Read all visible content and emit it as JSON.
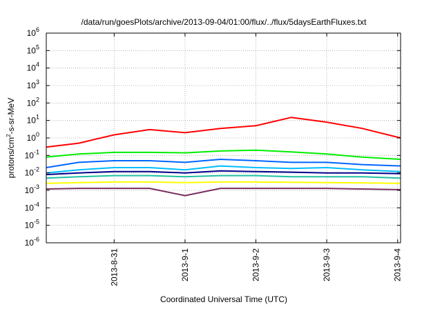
{
  "chart_data": {
    "type": "line",
    "title": "/data/run/goesPlots/archive/2013-09-04/01:00/flux/../flux/5daysEarthFluxes.txt",
    "xlabel": "Coordinated Universal Time (UTC)",
    "ylabel_parts": [
      "protons/cm",
      "2",
      "-s-sr-MeV"
    ],
    "y_scale": "log",
    "ylim": [
      1e-06,
      1000000.0
    ],
    "xlim": [
      "2013-08-30T01:00",
      "2013-09-04T01:00"
    ],
    "grid": true,
    "x_ticks": [
      {
        "date": "2013-08-31",
        "label": "2013-8-31"
      },
      {
        "date": "2013-09-01",
        "label": "2013-9-1"
      },
      {
        "date": "2013-09-02",
        "label": "2013-9-2"
      },
      {
        "date": "2013-09-03",
        "label": "2013-9-3"
      },
      {
        "date": "2013-09-04",
        "label": "2013-9-4"
      }
    ],
    "y_ticks": [
      {
        "exp": "-6",
        "value": 1e-06
      },
      {
        "exp": "-5",
        "value": 1e-05
      },
      {
        "exp": "-4",
        "value": 0.0001
      },
      {
        "exp": "-3",
        "value": 0.001
      },
      {
        "exp": "-2",
        "value": 0.01
      },
      {
        "exp": "-1",
        "value": 0.1
      },
      {
        "exp": "0",
        "value": 1
      },
      {
        "exp": "1",
        "value": 10
      },
      {
        "exp": "2",
        "value": 100
      },
      {
        "exp": "3",
        "value": 1000
      },
      {
        "exp": "4",
        "value": 10000
      },
      {
        "exp": "5",
        "value": 100000
      },
      {
        "exp": "6",
        "value": 1000000
      }
    ],
    "y_tick_base": "10",
    "series": [
      {
        "color": "#ff0000",
        "x": [
          "2013-08-30T01:00",
          "2013-08-30T12:00",
          "2013-08-31T00:00",
          "2013-08-31T12:00",
          "2013-09-01T00:00",
          "2013-09-01T12:00",
          "2013-09-02T00:00",
          "2013-09-02T12:00",
          "2013-09-03T00:00",
          "2013-09-03T12:00",
          "2013-09-04T01:00"
        ],
        "values": [
          0.3,
          0.5,
          1.5,
          3.0,
          2.0,
          3.5,
          5.0,
          15.0,
          8.0,
          3.5,
          1.0
        ]
      },
      {
        "color": "#00ee00",
        "x": [
          "2013-08-30T01:00",
          "2013-08-30T12:00",
          "2013-08-31T00:00",
          "2013-08-31T12:00",
          "2013-09-01T00:00",
          "2013-09-01T12:00",
          "2013-09-02T00:00",
          "2013-09-02T12:00",
          "2013-09-03T00:00",
          "2013-09-03T12:00",
          "2013-09-04T01:00"
        ],
        "values": [
          0.08,
          0.12,
          0.15,
          0.15,
          0.14,
          0.18,
          0.2,
          0.16,
          0.12,
          0.08,
          0.06
        ]
      },
      {
        "color": "#0066ff",
        "x": [
          "2013-08-30T01:00",
          "2013-08-30T12:00",
          "2013-08-31T00:00",
          "2013-08-31T12:00",
          "2013-09-01T00:00",
          "2013-09-01T12:00",
          "2013-09-02T00:00",
          "2013-09-02T12:00",
          "2013-09-03T00:00",
          "2013-09-03T12:00",
          "2013-09-04T01:00"
        ],
        "values": [
          0.02,
          0.04,
          0.05,
          0.05,
          0.04,
          0.06,
          0.05,
          0.04,
          0.04,
          0.03,
          0.025
        ]
      },
      {
        "color": "#00bbff",
        "x": [
          "2013-08-30T01:00",
          "2013-08-30T12:00",
          "2013-08-31T00:00",
          "2013-08-31T12:00",
          "2013-09-01T00:00",
          "2013-09-01T12:00",
          "2013-09-02T00:00",
          "2013-09-02T12:00",
          "2013-09-03T00:00",
          "2013-09-03T12:00",
          "2013-09-04T01:00"
        ],
        "values": [
          0.01,
          0.015,
          0.02,
          0.02,
          0.015,
          0.025,
          0.02,
          0.018,
          0.02,
          0.015,
          0.012
        ]
      },
      {
        "color": "#00008b",
        "x": [
          "2013-08-30T01:00",
          "2013-08-30T12:00",
          "2013-08-31T00:00",
          "2013-08-31T12:00",
          "2013-09-01T00:00",
          "2013-09-01T12:00",
          "2013-09-02T00:00",
          "2013-09-02T12:00",
          "2013-09-03T00:00",
          "2013-09-03T12:00",
          "2013-09-04T01:00"
        ],
        "values": [
          0.008,
          0.01,
          0.012,
          0.012,
          0.01,
          0.013,
          0.012,
          0.011,
          0.01,
          0.01,
          0.009
        ]
      },
      {
        "color": "#20c0a0",
        "x": [
          "2013-08-30T01:00",
          "2013-08-30T12:00",
          "2013-08-31T00:00",
          "2013-08-31T12:00",
          "2013-09-01T00:00",
          "2013-09-01T12:00",
          "2013-09-02T00:00",
          "2013-09-02T12:00",
          "2013-09-03T00:00",
          "2013-09-03T12:00",
          "2013-09-04T01:00"
        ],
        "values": [
          0.005,
          0.006,
          0.007,
          0.007,
          0.006,
          0.007,
          0.007,
          0.006,
          0.006,
          0.006,
          0.005
        ]
      },
      {
        "color": "#ffff00",
        "x": [
          "2013-08-30T01:00",
          "2013-08-30T12:00",
          "2013-08-31T00:00",
          "2013-08-31T12:00",
          "2013-09-01T00:00",
          "2013-09-01T12:00",
          "2013-09-02T00:00",
          "2013-09-02T12:00",
          "2013-09-03T00:00",
          "2013-09-03T12:00",
          "2013-09-04T01:00"
        ],
        "values": [
          0.0025,
          0.0028,
          0.003,
          0.003,
          0.0028,
          0.003,
          0.003,
          0.0029,
          0.0028,
          0.0027,
          0.0025
        ]
      },
      {
        "color": "#7b2d5e",
        "x": [
          "2013-08-30T01:00",
          "2013-08-30T12:00",
          "2013-08-31T00:00",
          "2013-08-31T12:00",
          "2013-09-01T00:00",
          "2013-09-01T12:00",
          "2013-09-02T00:00",
          "2013-09-02T12:00",
          "2013-09-03T00:00",
          "2013-09-03T12:00",
          "2013-09-04T01:00"
        ],
        "values": [
          0.0012,
          0.0013,
          0.0013,
          0.0013,
          0.0005,
          0.0013,
          0.0013,
          0.0013,
          0.0013,
          0.0012,
          0.0011
        ]
      }
    ]
  }
}
